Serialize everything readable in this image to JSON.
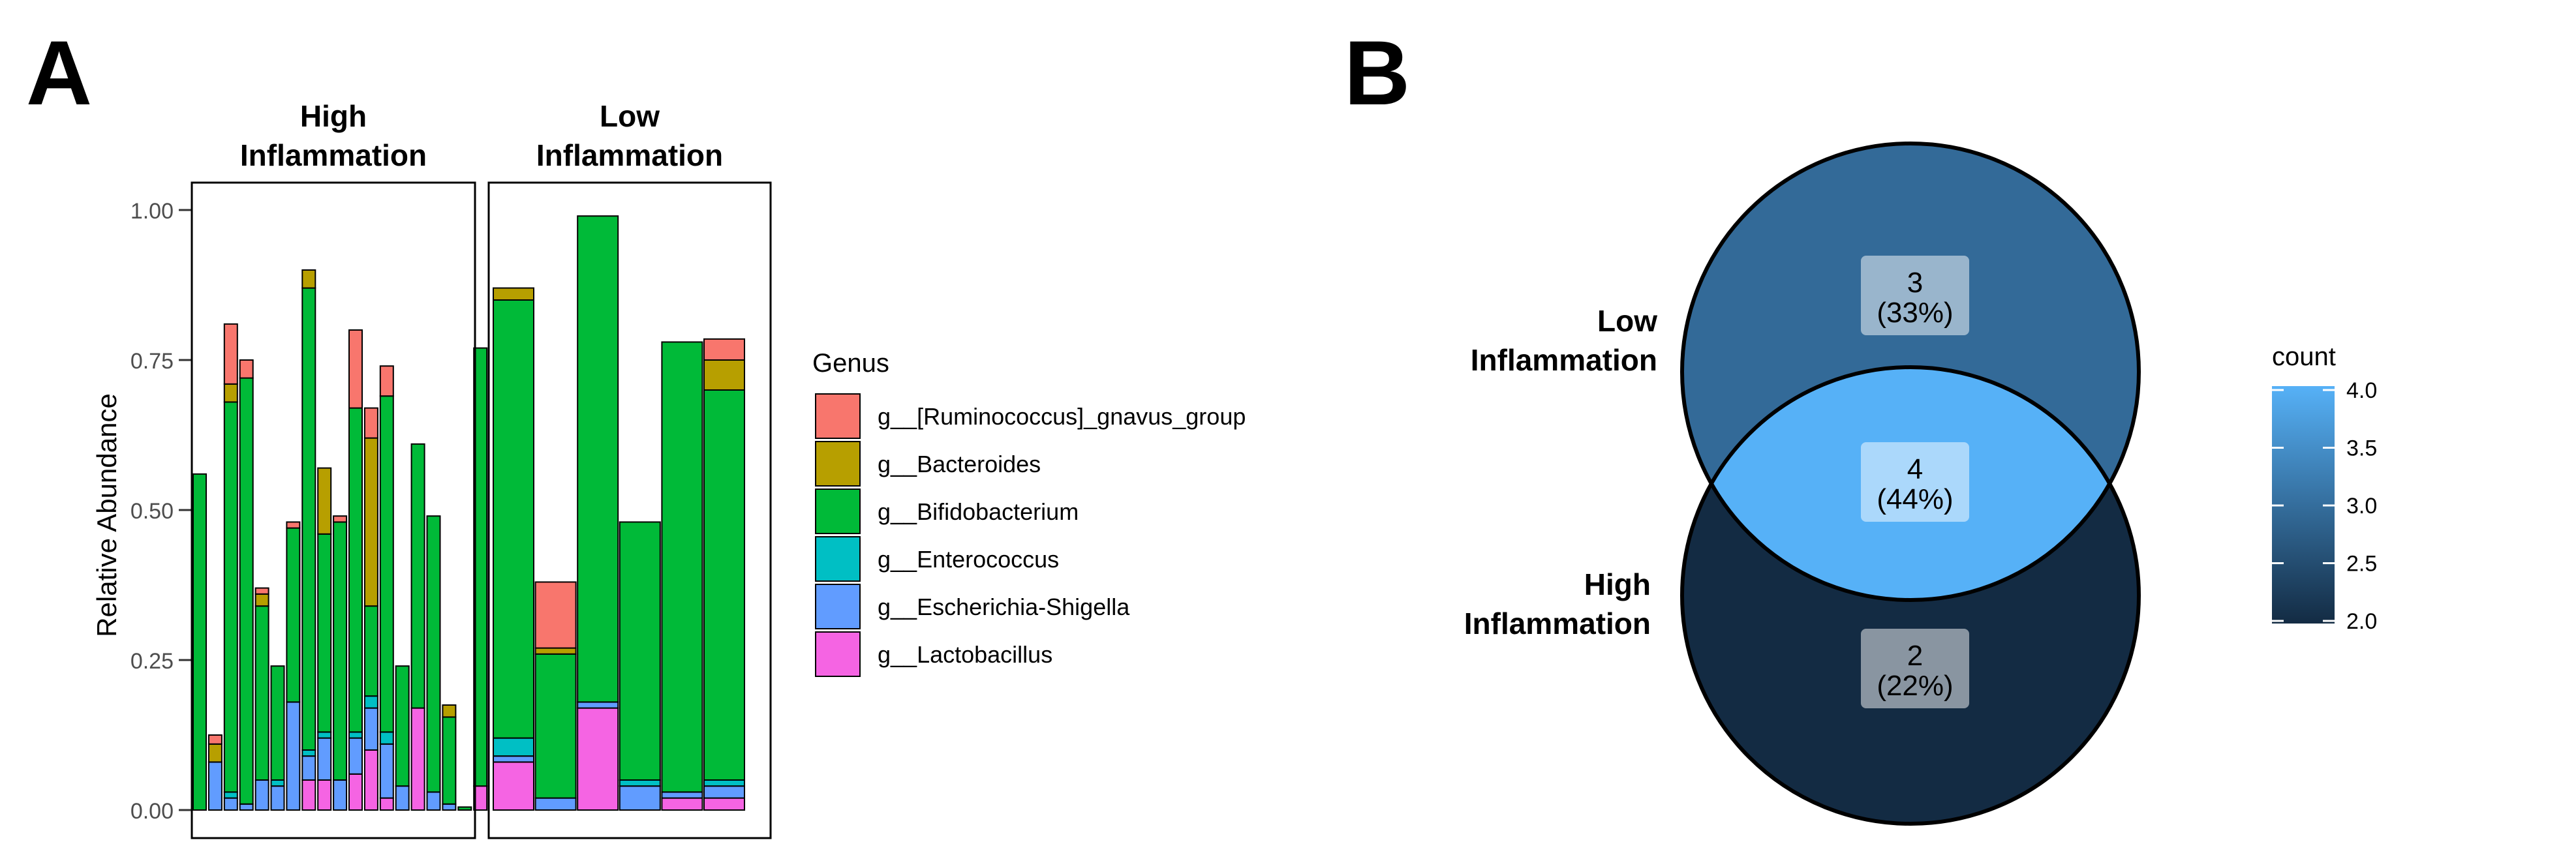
{
  "panel_a_label": "A",
  "panel_b_label": "B",
  "chart_data": [
    {
      "type": "bar",
      "stacked": true,
      "ylabel": "Relative Abundance",
      "xlabel": "",
      "ylim": [
        0,
        1.05
      ],
      "yticks": [
        "0.00",
        "0.25",
        "0.50",
        "0.75",
        "1.00"
      ],
      "grid": false,
      "legend_title": "Genus",
      "legend_position": "right",
      "facets": [
        {
          "title_lines": [
            "High",
            "Inflammation"
          ]
        },
        {
          "title_lines": [
            "Low",
            "Inflammation"
          ]
        }
      ],
      "series": [
        {
          "name": "g__[Ruminococcus]_gnavus_group",
          "color": "#F8766D"
        },
        {
          "name": "g__Bacteroides",
          "color": "#B79F00"
        },
        {
          "name": "g__Bifidobacterium",
          "color": "#00BA38"
        },
        {
          "name": "g__Enterococcus",
          "color": "#00BFC4"
        },
        {
          "name": "g__Escherichia-Shigella",
          "color": "#619CFF"
        },
        {
          "name": "g__Lactobacillus",
          "color": "#F564E3"
        }
      ],
      "samples": [
        {
          "facet": 0,
          "total": 0.56,
          "segments": [
            [
              2,
              0.56
            ]
          ]
        },
        {
          "facet": 0,
          "total": 0.125,
          "segments": [
            [
              4,
              0.08
            ],
            [
              1,
              0.03
            ],
            [
              0,
              0.015
            ]
          ]
        },
        {
          "facet": 0,
          "total": 0.81,
          "segments": [
            [
              4,
              0.02
            ],
            [
              3,
              0.01
            ],
            [
              2,
              0.65
            ],
            [
              1,
              0.03
            ],
            [
              0,
              0.1
            ]
          ]
        },
        {
          "facet": 0,
          "total": 0.75,
          "segments": [
            [
              4,
              0.01
            ],
            [
              2,
              0.71
            ],
            [
              0,
              0.03
            ]
          ]
        },
        {
          "facet": 0,
          "total": 0.37,
          "segments": [
            [
              4,
              0.05
            ],
            [
              2,
              0.29
            ],
            [
              1,
              0.02
            ],
            [
              0,
              0.01
            ]
          ]
        },
        {
          "facet": 0,
          "total": 0.24,
          "segments": [
            [
              4,
              0.04
            ],
            [
              3,
              0.01
            ],
            [
              2,
              0.19
            ]
          ]
        },
        {
          "facet": 0,
          "total": 0.48,
          "segments": [
            [
              4,
              0.18
            ],
            [
              2,
              0.29
            ],
            [
              0,
              0.01
            ]
          ]
        },
        {
          "facet": 0,
          "total": 0.9,
          "segments": [
            [
              5,
              0.05
            ],
            [
              4,
              0.04
            ],
            [
              3,
              0.01
            ],
            [
              2,
              0.77
            ],
            [
              1,
              0.03
            ]
          ]
        },
        {
          "facet": 0,
          "total": 0.57,
          "segments": [
            [
              5,
              0.05
            ],
            [
              4,
              0.07
            ],
            [
              3,
              0.01
            ],
            [
              2,
              0.33
            ],
            [
              1,
              0.11
            ]
          ]
        },
        {
          "facet": 0,
          "total": 0.49,
          "segments": [
            [
              4,
              0.05
            ],
            [
              2,
              0.43
            ],
            [
              0,
              0.01
            ]
          ]
        },
        {
          "facet": 0,
          "total": 0.8,
          "segments": [
            [
              5,
              0.06
            ],
            [
              4,
              0.06
            ],
            [
              3,
              0.01
            ],
            [
              2,
              0.54
            ],
            [
              0,
              0.13
            ]
          ]
        },
        {
          "facet": 0,
          "total": 0.67,
          "segments": [
            [
              5,
              0.1
            ],
            [
              4,
              0.07
            ],
            [
              3,
              0.02
            ],
            [
              2,
              0.15
            ],
            [
              1,
              0.28
            ],
            [
              0,
              0.05
            ]
          ]
        },
        {
          "facet": 0,
          "total": 0.74,
          "segments": [
            [
              5,
              0.02
            ],
            [
              4,
              0.09
            ],
            [
              3,
              0.02
            ],
            [
              2,
              0.56
            ],
            [
              0,
              0.05
            ]
          ]
        },
        {
          "facet": 0,
          "total": 0.24,
          "segments": [
            [
              4,
              0.04
            ],
            [
              2,
              0.2
            ]
          ]
        },
        {
          "facet": 0,
          "total": 0.61,
          "segments": [
            [
              5,
              0.17
            ],
            [
              2,
              0.44
            ]
          ]
        },
        {
          "facet": 0,
          "total": 0.49,
          "segments": [
            [
              4,
              0.03
            ],
            [
              2,
              0.46
            ]
          ]
        },
        {
          "facet": 0,
          "total": 0.175,
          "segments": [
            [
              4,
              0.01
            ],
            [
              2,
              0.145
            ],
            [
              1,
              0.02
            ]
          ]
        },
        {
          "facet": 0,
          "total": 0.005,
          "segments": [
            [
              2,
              0.005
            ]
          ]
        },
        {
          "facet": 0,
          "total": 0.77,
          "segments": [
            [
              5,
              0.04
            ],
            [
              2,
              0.73
            ]
          ]
        },
        {
          "facet": 1,
          "total": 0.87,
          "segments": [
            [
              5,
              0.08
            ],
            [
              4,
              0.01
            ],
            [
              3,
              0.03
            ],
            [
              2,
              0.73
            ],
            [
              1,
              0.02
            ]
          ]
        },
        {
          "facet": 1,
          "total": 0.38,
          "segments": [
            [
              4,
              0.02
            ],
            [
              2,
              0.24
            ],
            [
              1,
              0.01
            ],
            [
              0,
              0.11
            ]
          ]
        },
        {
          "facet": 1,
          "total": 0.99,
          "segments": [
            [
              5,
              0.17
            ],
            [
              4,
              0.01
            ],
            [
              2,
              0.81
            ]
          ]
        },
        {
          "facet": 1,
          "total": 0.48,
          "segments": [
            [
              4,
              0.04
            ],
            [
              3,
              0.01
            ],
            [
              2,
              0.43
            ]
          ]
        },
        {
          "facet": 1,
          "total": 0.78,
          "segments": [
            [
              5,
              0.02
            ],
            [
              4,
              0.01
            ],
            [
              2,
              0.75
            ]
          ]
        },
        {
          "facet": 1,
          "total": 0.785,
          "segments": [
            [
              5,
              0.02
            ],
            [
              4,
              0.02
            ],
            [
              3,
              0.01
            ],
            [
              2,
              0.65
            ],
            [
              1,
              0.05
            ],
            [
              0,
              0.035
            ]
          ]
        }
      ]
    },
    {
      "type": "venn",
      "sets": [
        "Low Inflammation",
        "High Inflammation"
      ],
      "set_label_lines": [
        [
          "Low",
          "Inflammation"
        ],
        [
          "High",
          "Inflammation"
        ]
      ],
      "regions": [
        {
          "id": "low_only",
          "count": 3,
          "count_text": "3",
          "pct_text": "(33%)",
          "color": "#336A98"
        },
        {
          "id": "both",
          "count": 4,
          "count_text": "4",
          "pct_text": "(44%)",
          "color": "#56B1F7"
        },
        {
          "id": "high_only",
          "count": 2,
          "count_text": "2",
          "pct_text": "(22%)",
          "color": "#132B43"
        }
      ],
      "legend": {
        "title": "count",
        "range": [
          2.0,
          4.0
        ],
        "ticks": [
          "2.0",
          "2.5",
          "3.0",
          "3.5",
          "4.0"
        ],
        "colors": [
          "#132B43",
          "#56B1F7"
        ],
        "position": "right"
      }
    }
  ]
}
